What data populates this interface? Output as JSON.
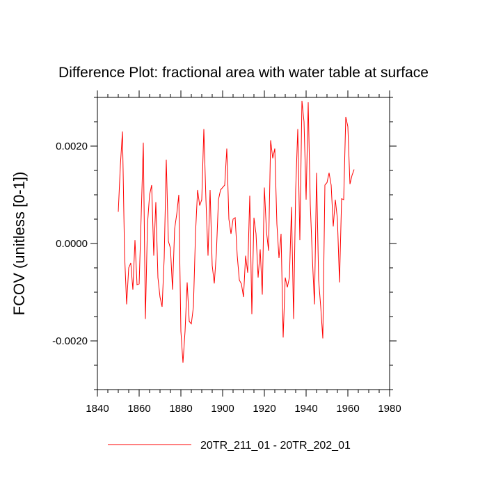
{
  "chart_data": {
    "type": "line",
    "title": "Difference Plot: fractional area with water table at surface",
    "xlabel": "",
    "ylabel": "FCOV  (unitless [0-1])",
    "xlim": [
      1840,
      1980
    ],
    "ylim": [
      -0.003,
      0.003
    ],
    "x_ticks": [
      1840,
      1860,
      1880,
      1900,
      1920,
      1940,
      1960,
      1980
    ],
    "x_tick_labels": [
      "1840",
      "1860",
      "1880",
      "1900",
      "1920",
      "1940",
      "1960",
      "1980"
    ],
    "y_ticks": [
      -0.002,
      0.0,
      0.002
    ],
    "y_tick_labels": [
      "-0.0020",
      "0.0000",
      "0.0020"
    ],
    "grid": false,
    "legend_position": "bottom-center",
    "series": [
      {
        "name": "20TR_211_01 - 20TR_202_01",
        "color": "#ff0000",
        "x": [
          1850,
          1851,
          1852,
          1853,
          1854,
          1855,
          1856,
          1857,
          1858,
          1859,
          1860,
          1861,
          1862,
          1863,
          1864,
          1865,
          1866,
          1867,
          1868,
          1869,
          1870,
          1871,
          1872,
          1873,
          1874,
          1875,
          1876,
          1877,
          1878,
          1879,
          1880,
          1881,
          1882,
          1883,
          1884,
          1885,
          1886,
          1887,
          1888,
          1889,
          1890,
          1891,
          1892,
          1893,
          1894,
          1895,
          1896,
          1897,
          1898,
          1899,
          1900,
          1901,
          1902,
          1903,
          1904,
          1905,
          1906,
          1907,
          1908,
          1909,
          1910,
          1911,
          1912,
          1913,
          1914,
          1915,
          1916,
          1917,
          1918,
          1919,
          1920,
          1921,
          1922,
          1923,
          1924,
          1925,
          1926,
          1927,
          1928,
          1929,
          1930,
          1931,
          1932,
          1933,
          1934,
          1935,
          1936,
          1937,
          1938,
          1939,
          1940,
          1941,
          1942,
          1943,
          1944,
          1945,
          1946,
          1947,
          1948,
          1949,
          1950,
          1951,
          1952,
          1953,
          1954,
          1955,
          1956,
          1957,
          1958,
          1959,
          1960,
          1961,
          1962,
          1963
        ],
        "values": [
          0.00065,
          0.0016,
          0.0023,
          -0.0002,
          -0.00125,
          -0.0005,
          -0.0004,
          -0.00095,
          7e-05,
          -0.00085,
          -0.00083,
          0.0006,
          0.00207,
          -0.00155,
          0.0004,
          0.001,
          0.0012,
          -0.00025,
          0.00085,
          -0.0007,
          -0.0011,
          -0.0013,
          -0.0003,
          0.00172,
          5e-05,
          -0.0001,
          -0.00095,
          0.0003,
          0.0006,
          0.001,
          -0.0018,
          -0.00245,
          -0.0018,
          -0.0008,
          -0.0016,
          -0.00165,
          -0.0013,
          0.0002,
          0.0011,
          0.00078,
          0.0009,
          0.00235,
          0.0009,
          -0.00025,
          0.0011,
          -0.00045,
          -0.00082,
          -0.0002,
          0.0009,
          0.0011,
          0.00115,
          0.0012,
          0.00195,
          0.0005,
          0.0002,
          0.0005,
          0.00053,
          -0.00025,
          -0.00075,
          -0.00083,
          -0.0011,
          -0.00025,
          -0.0006,
          0.00098,
          -0.00145,
          0.00053,
          0.0002,
          -0.0007,
          -0.00012,
          -0.00105,
          0.00115,
          0.00025,
          -0.00015,
          0.00212,
          0.00175,
          0.00195,
          0.0004,
          -0.0003,
          0.0002,
          -0.00193,
          -0.0007,
          -0.0009,
          -0.0007,
          0.00075,
          -0.00155,
          0.0011,
          0.00235,
          7e-05,
          0.00293,
          0.0025,
          0.0009,
          0.0029,
          0.0008,
          -0.0003,
          -0.00125,
          0.00145,
          -0.00075,
          -0.0013,
          -0.00195,
          0.0012,
          0.00125,
          0.00145,
          0.0012,
          0.00035,
          0.0009,
          0.0005,
          -0.0008,
          0.00092,
          0.0009,
          0.0026,
          0.0024,
          0.00122,
          0.0014,
          0.00152
        ]
      }
    ]
  }
}
